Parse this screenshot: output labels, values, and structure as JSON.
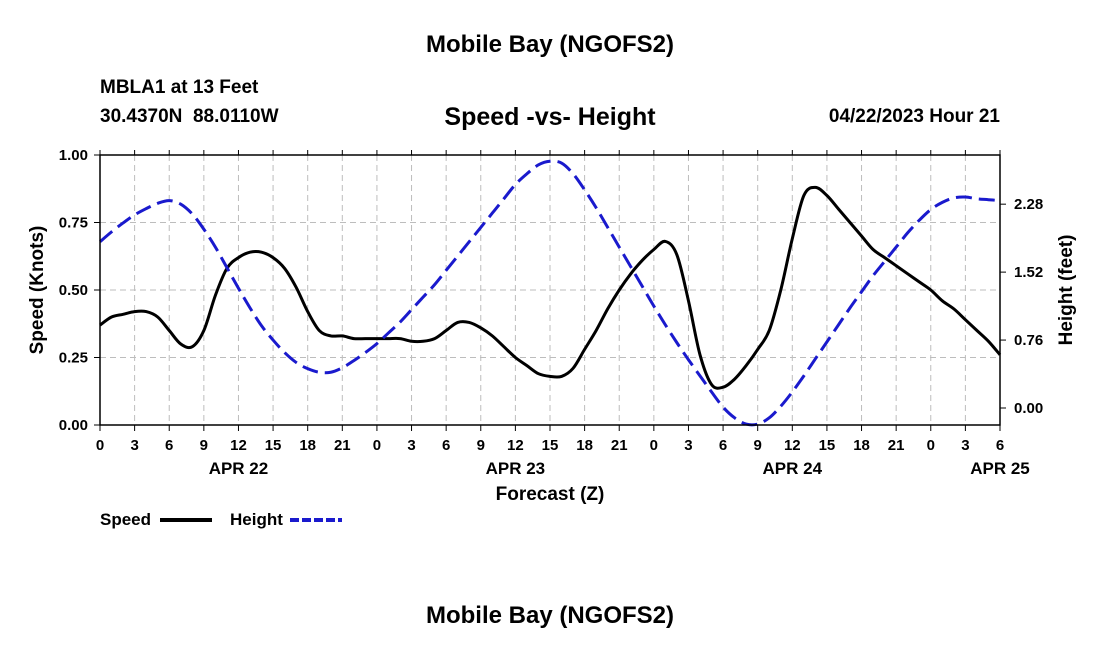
{
  "page": {
    "top_title": "Mobile Bay (NGOFS2)",
    "bottom_title": "Mobile Bay (NGOFS2)",
    "station_line": "MBLA1 at 13 Feet",
    "coords_line": "30.4370N  88.0110W",
    "datetime_line": "04/22/2023 Hour 21"
  },
  "chart_data": {
    "type": "line",
    "title": "Speed -vs- Height",
    "xlabel": "Forecast (Z)",
    "ylabel_left": "Speed (Knots)",
    "ylabel_right": "Height (feet)",
    "x_range_hours": [
      0,
      78
    ],
    "ylim_left": [
      0,
      1.0
    ],
    "ylim_right": [
      -0.19,
      2.83
    ],
    "x_tick_labels": [
      "0",
      "3",
      "6",
      "9",
      "12",
      "15",
      "18",
      "21",
      "0",
      "3",
      "6",
      "9",
      "12",
      "15",
      "18",
      "21",
      "0",
      "3",
      "6",
      "9",
      "12",
      "15",
      "18",
      "21",
      "0",
      "3",
      "6"
    ],
    "date_labels": [
      {
        "label": "APR 22",
        "hour": 12
      },
      {
        "label": "APR 23",
        "hour": 36
      },
      {
        "label": "APR 24",
        "hour": 60
      },
      {
        "label": "APR 25",
        "hour": 78
      }
    ],
    "left_ticks": [
      {
        "value": 0.0,
        "label": "0.00"
      },
      {
        "value": 0.25,
        "label": "0.25"
      },
      {
        "value": 0.5,
        "label": "0.50"
      },
      {
        "value": 0.75,
        "label": "0.75"
      },
      {
        "value": 1.0,
        "label": "1.00"
      }
    ],
    "right_ticks": [
      {
        "value": 0.0,
        "label": "0.00"
      },
      {
        "value": 0.76,
        "label": "0.76"
      },
      {
        "value": 1.52,
        "label": "1.52"
      },
      {
        "value": 2.28,
        "label": "2.28"
      }
    ],
    "legend": [
      "Speed",
      "Height"
    ],
    "series": [
      {
        "name": "Speed",
        "axis": "left",
        "color": "#000000",
        "dash": "solid",
        "x": [
          0,
          1,
          2,
          3,
          4,
          5,
          6,
          7,
          8,
          9,
          10,
          11,
          12,
          13,
          14,
          15,
          16,
          17,
          18,
          19,
          20,
          21,
          22,
          23,
          24,
          25,
          26,
          27,
          28,
          29,
          30,
          31,
          32,
          33,
          34,
          35,
          36,
          37,
          38,
          39,
          40,
          41,
          42,
          43,
          44,
          45,
          46,
          47,
          48,
          49,
          50,
          51,
          52,
          53,
          54,
          55,
          56,
          57,
          58,
          59,
          60,
          61,
          62,
          63,
          64,
          65,
          66,
          67,
          68,
          69,
          70,
          71,
          72,
          73,
          74,
          75,
          76,
          77,
          78
        ],
        "values": [
          0.37,
          0.4,
          0.41,
          0.42,
          0.42,
          0.4,
          0.35,
          0.3,
          0.29,
          0.35,
          0.48,
          0.58,
          0.62,
          0.64,
          0.64,
          0.62,
          0.58,
          0.51,
          0.42,
          0.35,
          0.33,
          0.33,
          0.32,
          0.32,
          0.32,
          0.32,
          0.32,
          0.31,
          0.31,
          0.32,
          0.35,
          0.38,
          0.38,
          0.36,
          0.33,
          0.29,
          0.25,
          0.22,
          0.19,
          0.18,
          0.18,
          0.21,
          0.28,
          0.35,
          0.43,
          0.5,
          0.56,
          0.61,
          0.65,
          0.68,
          0.63,
          0.46,
          0.26,
          0.15,
          0.14,
          0.17,
          0.22,
          0.28,
          0.35,
          0.5,
          0.69,
          0.85,
          0.88,
          0.85,
          0.8,
          0.75,
          0.7,
          0.65,
          0.62,
          0.59,
          0.56,
          0.53,
          0.5,
          0.46,
          0.43,
          0.39,
          0.35,
          0.31,
          0.26
        ]
      },
      {
        "name": "Height",
        "axis": "right",
        "color": "#1a1acd",
        "dash": "dashed",
        "x": [
          0,
          1,
          2,
          3,
          4,
          5,
          6,
          7,
          8,
          9,
          10,
          11,
          12,
          13,
          14,
          15,
          16,
          17,
          18,
          19,
          20,
          21,
          22,
          23,
          24,
          25,
          26,
          27,
          28,
          29,
          30,
          31,
          32,
          33,
          34,
          35,
          36,
          37,
          38,
          39,
          40,
          41,
          42,
          43,
          44,
          45,
          46,
          47,
          48,
          49,
          50,
          51,
          52,
          53,
          54,
          55,
          56,
          57,
          58,
          59,
          60,
          61,
          62,
          63,
          64,
          65,
          66,
          67,
          68,
          69,
          70,
          71,
          72,
          73,
          74,
          75,
          76,
          77,
          78
        ],
        "values": [
          1.86,
          1.97,
          2.07,
          2.16,
          2.23,
          2.29,
          2.32,
          2.28,
          2.17,
          2.0,
          1.8,
          1.57,
          1.34,
          1.12,
          0.92,
          0.76,
          0.62,
          0.51,
          0.44,
          0.4,
          0.4,
          0.45,
          0.53,
          0.62,
          0.72,
          0.84,
          0.96,
          1.1,
          1.24,
          1.38,
          1.54,
          1.7,
          1.86,
          2.02,
          2.18,
          2.34,
          2.5,
          2.62,
          2.72,
          2.76,
          2.74,
          2.62,
          2.44,
          2.24,
          2.02,
          1.8,
          1.58,
          1.36,
          1.14,
          0.93,
          0.73,
          0.54,
          0.36,
          0.18,
          0.01,
          -0.11,
          -0.18,
          -0.18,
          -0.11,
          0.02,
          0.18,
          0.36,
          0.55,
          0.74,
          0.93,
          1.12,
          1.3,
          1.48,
          1.64,
          1.8,
          1.96,
          2.1,
          2.22,
          2.3,
          2.35,
          2.36,
          2.34,
          2.33,
          2.32
        ]
      }
    ]
  }
}
